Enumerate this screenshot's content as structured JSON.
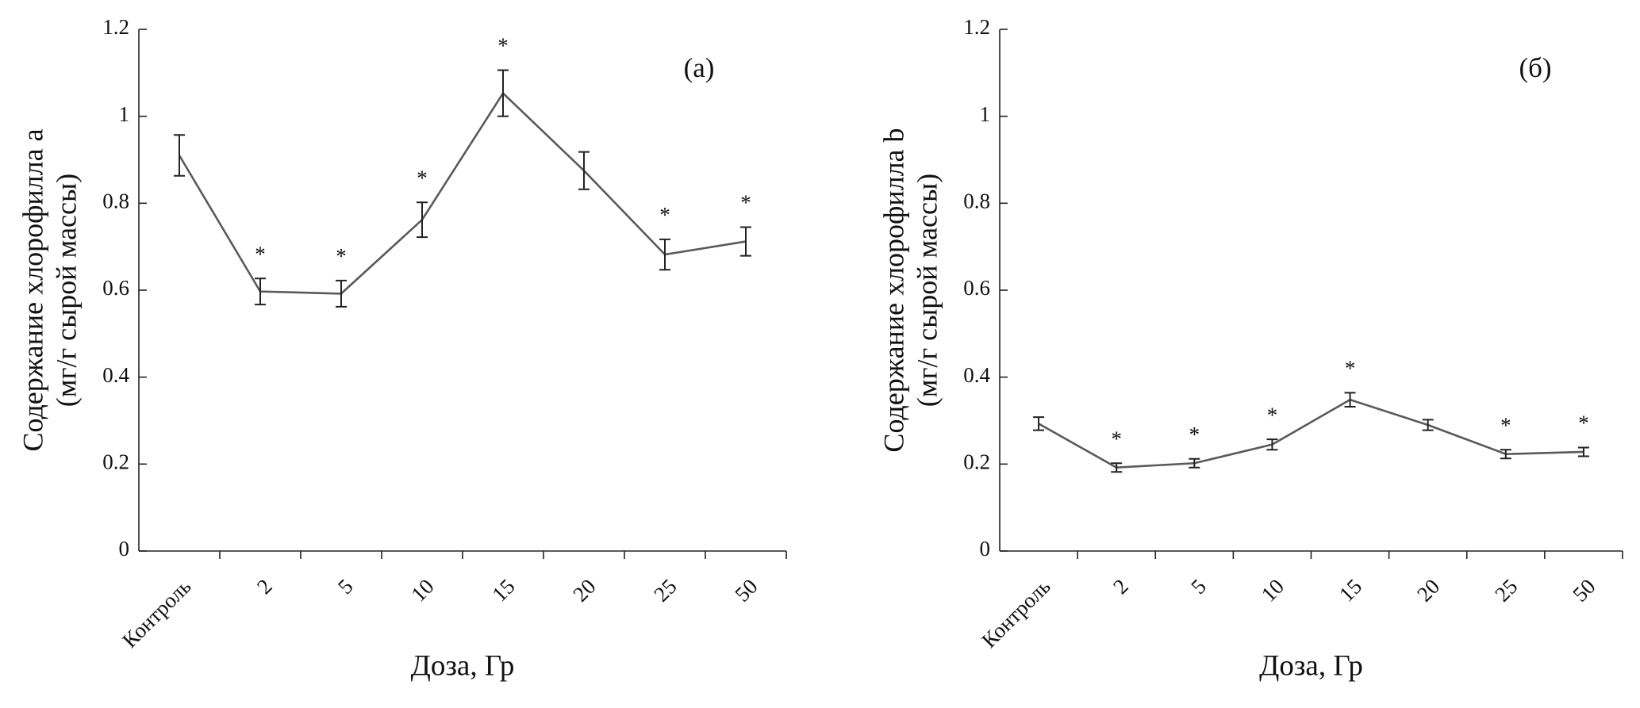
{
  "chart_data": [
    {
      "type": "line",
      "panel_label": "(а)",
      "xlabel": "Доза, Гр",
      "ylabel": [
        "Содержание хлорофилла a",
        "(мг/г сырой массы)"
      ],
      "categories": [
        "Контроль",
        "2",
        "5",
        "10",
        "15",
        "20",
        "25",
        "50"
      ],
      "values": [
        0.91,
        0.597,
        0.592,
        0.762,
        1.053,
        0.875,
        0.682,
        0.712
      ],
      "errors": [
        0.047,
        0.03,
        0.03,
        0.04,
        0.053,
        0.043,
        0.035,
        0.033
      ],
      "annotations": [
        null,
        "*",
        "*",
        "*",
        "*",
        null,
        "*",
        "*"
      ],
      "color": "#5a5a5a",
      "ylim": [
        0,
        1.2
      ],
      "yticks": [
        0,
        0.2,
        0.4,
        0.6,
        0.8,
        1,
        1.2
      ]
    },
    {
      "type": "line",
      "panel_label": "(б)",
      "xlabel": "Доза, Гр",
      "ylabel": [
        "Содержание хлорофилла b",
        "(мг/г сырой массы)"
      ],
      "categories": [
        "Контроль",
        "2",
        "5",
        "10",
        "15",
        "20",
        "25",
        "50"
      ],
      "values": [
        0.293,
        0.192,
        0.202,
        0.245,
        0.348,
        0.29,
        0.223,
        0.228
      ],
      "errors": [
        0.015,
        0.01,
        0.01,
        0.012,
        0.016,
        0.012,
        0.01,
        0.01
      ],
      "annotations": [
        null,
        "*",
        "*",
        "*",
        "*",
        null,
        "*",
        "*"
      ],
      "color": "#5a5a5a",
      "ylim": [
        0,
        1.2
      ],
      "yticks": [
        0,
        0.2,
        0.4,
        0.6,
        0.8,
        1,
        1.2
      ]
    }
  ]
}
